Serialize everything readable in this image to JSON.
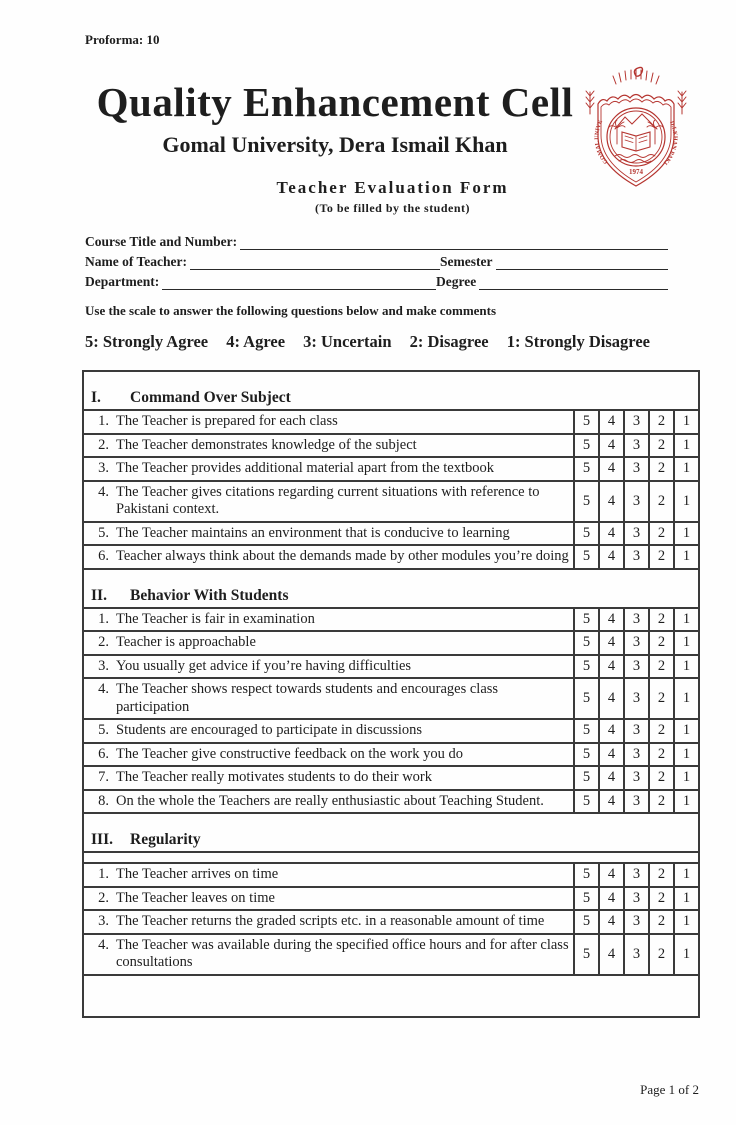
{
  "page": {
    "proforma": "Proforma: 10",
    "footer": "Page 1 of 2"
  },
  "header": {
    "org": "Quality Enhancement Cell",
    "university": "Gomal University, Dera Ismail Khan",
    "form_title": "Teacher Evaluation Form",
    "form_subtitle": "(To be filled by the student)",
    "seal": {
      "color": "#b5342f",
      "rim_text_left": "GOMAL UNIVERSITY",
      "rim_text_right": "D.I.KHAN PAKISTAN",
      "year": "1974"
    }
  },
  "fields": {
    "course_label": "Course Title and Number:",
    "teacher_label": "Name of Teacher:",
    "semester_label": "Semester",
    "department_label": "Department:",
    "degree_label": "Degree"
  },
  "instructions": "Use the scale to answer the following questions below and make comments",
  "scale": [
    "5: Strongly Agree",
    "4: Agree",
    "3: Uncertain",
    "2: Disagree",
    "1: Strongly Disagree"
  ],
  "ratings": [
    "5",
    "4",
    "3",
    "2",
    "1"
  ],
  "sections": [
    {
      "numeral": "I.",
      "title": "Command Over Subject",
      "gap_after_header": false,
      "items": [
        {
          "num": "1.",
          "text": "The Teacher is prepared for each class"
        },
        {
          "num": "2.",
          "text": "The Teacher demonstrates knowledge of the subject"
        },
        {
          "num": "3.",
          "text": "The Teacher provides additional material apart from the textbook"
        },
        {
          "num": "4.",
          "text": "The Teacher gives citations regarding current situations with reference to Pakistani context."
        },
        {
          "num": "5.",
          "text": "The Teacher maintains an environment that is conducive to learning"
        },
        {
          "num": "6.",
          "text": "Teacher always think about the demands made by other modules you’re doing"
        }
      ]
    },
    {
      "numeral": "II.",
      "title": "Behavior With Students",
      "gap_after_header": false,
      "items": [
        {
          "num": "1.",
          "text": "The Teacher is fair in examination"
        },
        {
          "num": "2.",
          "text": "Teacher is approachable"
        },
        {
          "num": "3.",
          "text": "You usually get advice if you’re having difficulties"
        },
        {
          "num": "4.",
          "text": "The Teacher shows respect towards students and encourages class participation"
        },
        {
          "num": "5.",
          "text": "Students are encouraged to participate in discussions"
        },
        {
          "num": "6.",
          "text": "The Teacher give constructive feedback on the work you do"
        },
        {
          "num": "7.",
          "text": "The Teacher really motivates students to do their work"
        },
        {
          "num": "8.",
          "text": "On the whole the Teachers are really enthusiastic about Teaching Student."
        }
      ]
    },
    {
      "numeral": "III.",
      "title": "Regularity",
      "gap_after_header": true,
      "items": [
        {
          "num": "1.",
          "text": "The Teacher arrives on time"
        },
        {
          "num": "2.",
          "text": "The Teacher leaves on time"
        },
        {
          "num": "3.",
          "text": "The Teacher returns the graded scripts etc. in a reasonable amount of time"
        },
        {
          "num": "4.",
          "text": "The Teacher was available during the specified office hours and for after class consultations"
        }
      ]
    }
  ]
}
